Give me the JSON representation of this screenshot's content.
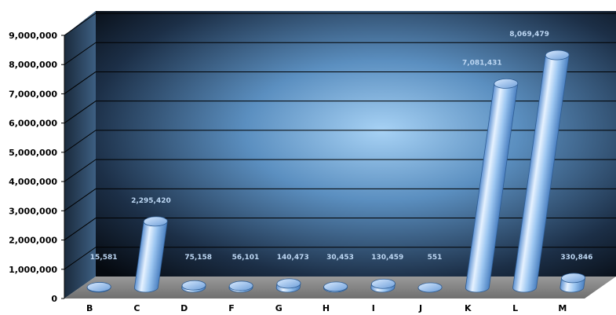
{
  "chart_data": {
    "type": "bar",
    "categories": [
      "B",
      "C",
      "D",
      "F",
      "G",
      "H",
      "I",
      "J",
      "K",
      "L",
      "M"
    ],
    "values": [
      15581,
      2295420,
      75158,
      56101,
      140473,
      30453,
      130459,
      551,
      7081431,
      8069479,
      330846
    ],
    "data_labels": [
      "15,581",
      "2,295,420",
      "75,158",
      "56,101",
      "140,473",
      "30,453",
      "130,459",
      "551",
      "7,081,431",
      "8,069,479",
      "330,846"
    ],
    "y_ticks": [
      "0",
      "1,000,000",
      "2,000,000",
      "3,000,000",
      "4,000,000",
      "5,000,000",
      "6,000,000",
      "7,000,000",
      "8,000,000",
      "9,000,000"
    ],
    "ylim": [
      0,
      9000000
    ],
    "title": "",
    "xlabel": "",
    "ylabel": "",
    "grid": true,
    "legend": "none",
    "colors": {
      "bar_light": "#cfe4fb",
      "bar_mid": "#7fb3ec",
      "bar_dark": "#4a7fc0",
      "wall_center": "#8ec3ee",
      "wall_edge": "#0b1420",
      "floor": "#8d8d8d",
      "label": "#bcd6f2"
    }
  }
}
